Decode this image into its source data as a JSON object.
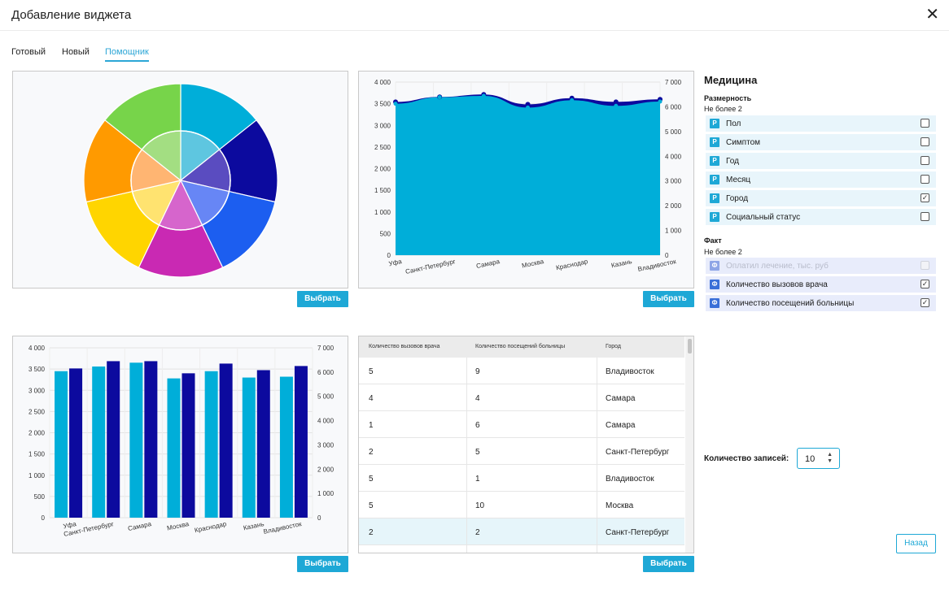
{
  "header": {
    "title": "Добавление виджета",
    "close_icon": "close-icon"
  },
  "tabs": [
    {
      "label": "Готовый",
      "active": false
    },
    {
      "label": "Новый",
      "active": false
    },
    {
      "label": "Помощник",
      "active": true
    }
  ],
  "select_label": "Выбрать",
  "colors": {
    "accent": "#1ea8d6",
    "series_light": "#00aed9",
    "series_dark": "#0c0a9e"
  },
  "chart_data": [
    {
      "type": "pie",
      "title": "",
      "outer": [
        {
          "value": 1,
          "color": "#00aed9"
        },
        {
          "value": 1,
          "color": "#0c0a9e"
        },
        {
          "value": 1,
          "color": "#1c5ef0"
        },
        {
          "value": 1,
          "color": "#c929b3"
        },
        {
          "value": 1,
          "color": "#ffd500"
        },
        {
          "value": 1,
          "color": "#ff9a00"
        },
        {
          "value": 1,
          "color": "#77d44a"
        }
      ],
      "inner": [
        {
          "value": 1,
          "color": "#5ec6e0"
        },
        {
          "value": 1,
          "color": "#5a4cc0"
        },
        {
          "value": 1,
          "color": "#6786f5"
        },
        {
          "value": 1,
          "color": "#d665cc"
        },
        {
          "value": 1,
          "color": "#ffe370"
        },
        {
          "value": 1,
          "color": "#ffb572"
        },
        {
          "value": 1,
          "color": "#a3de82"
        }
      ]
    },
    {
      "type": "area",
      "title": "",
      "categories": [
        "Уфа",
        "Санкт-Петербург",
        "Самара",
        "Москва",
        "Краснодар",
        "Казань",
        "Владивосток"
      ],
      "series": [
        {
          "values": [
            3500,
            3650,
            3680,
            3410,
            3580,
            3450,
            3550
          ],
          "axis": "left"
        },
        {
          "values": [
            6200,
            6400,
            6500,
            6100,
            6350,
            6200,
            6300
          ],
          "axis": "right"
        }
      ],
      "ylim_left": [
        0,
        4000
      ],
      "yticks_left": [
        0,
        500,
        1000,
        1500,
        2000,
        2500,
        3000,
        3500,
        4000
      ],
      "yticks_left_labels": [
        "0",
        "500",
        "1 000",
        "1 500",
        "2 000",
        "2 500",
        "3 000",
        "3 500",
        "4 000"
      ],
      "ylim_right": [
        0,
        7000
      ],
      "yticks_right": [
        0,
        1000,
        2000,
        3000,
        4000,
        5000,
        6000,
        7000
      ],
      "yticks_right_labels": [
        "0",
        "1 000",
        "2 000",
        "3 000",
        "4 000",
        "5 000",
        "6 000",
        "7 000"
      ]
    },
    {
      "type": "bar",
      "title": "",
      "categories": [
        "Уфа",
        "Санкт-Петербург",
        "Самара",
        "Москва",
        "Краснодар",
        "Казань",
        "Владивосток"
      ],
      "series": [
        {
          "values": [
            3450,
            3560,
            3650,
            3280,
            3450,
            3300,
            3320
          ],
          "axis": "left"
        },
        {
          "values": [
            6150,
            6450,
            6450,
            5950,
            6350,
            6080,
            6250
          ],
          "axis": "right"
        }
      ],
      "ylim_left": [
        0,
        4000
      ],
      "yticks_left": [
        0,
        500,
        1000,
        1500,
        2000,
        2500,
        3000,
        3500,
        4000
      ],
      "yticks_left_labels": [
        "0",
        "500",
        "1 000",
        "1 500",
        "2 000",
        "2 500",
        "3 000",
        "3 500",
        "4 000"
      ],
      "ylim_right": [
        0,
        7000
      ],
      "yticks_right": [
        0,
        1000,
        2000,
        3000,
        4000,
        5000,
        6000,
        7000
      ],
      "yticks_right_labels": [
        "0",
        "1 000",
        "2 000",
        "3 000",
        "4 000",
        "5 000",
        "6 000",
        "7 000"
      ]
    }
  ],
  "table": {
    "columns": [
      "Количество вызовов врача",
      "Количество посещений больницы",
      "Город"
    ],
    "rows": [
      [
        "5",
        "9",
        "Владивосток"
      ],
      [
        "4",
        "4",
        "Самара"
      ],
      [
        "1",
        "6",
        "Самара"
      ],
      [
        "2",
        "5",
        "Санкт-Петербург"
      ],
      [
        "5",
        "1",
        "Владивосток"
      ],
      [
        "5",
        "10",
        "Москва"
      ],
      [
        "2",
        "2",
        "Санкт-Петербург"
      ]
    ],
    "selected_row": 6
  },
  "medicine": {
    "title": "Медицина",
    "dimension": {
      "title": "Размерность",
      "note": "Не более 2",
      "badge": "P",
      "items": [
        {
          "label": "Пол",
          "checked": false
        },
        {
          "label": "Симптом",
          "checked": false
        },
        {
          "label": "Год",
          "checked": false
        },
        {
          "label": "Месяц",
          "checked": false
        },
        {
          "label": "Город",
          "checked": true
        },
        {
          "label": "Социальный статус",
          "checked": false
        }
      ]
    },
    "fact": {
      "title": "Факт",
      "note": "Не более 2",
      "badge": "Ф",
      "items": [
        {
          "label": "Оплатил лечение, тыс. руб",
          "checked": false,
          "disabled": true
        },
        {
          "label": "Количество вызовов врача",
          "checked": true,
          "disabled": false
        },
        {
          "label": "Количество посещений больницы",
          "checked": true,
          "disabled": false
        }
      ]
    }
  },
  "records": {
    "label": "Количество записей:",
    "value": "10"
  },
  "back_label": "Назад"
}
